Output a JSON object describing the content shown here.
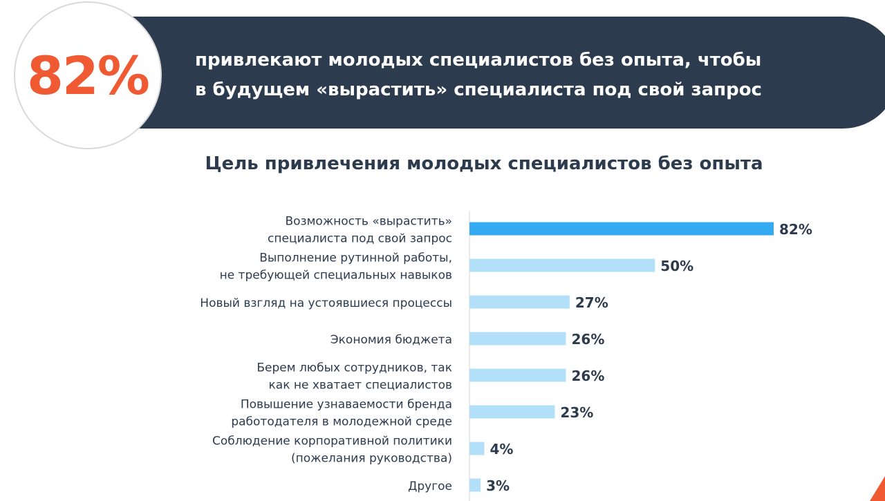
{
  "headline": {
    "percent": "82%",
    "line1": "привлекают молодых специалистов без опыта, чтобы",
    "line2": "в будущем «вырастить» специалиста под свой запрос"
  },
  "colors": {
    "banner": "#2d3b4e",
    "accent": "#f05a33",
    "bar_highlight": "#34aaf1",
    "bar_default": "#b3e0f9",
    "text": "#2d3b4e"
  },
  "chart_data": {
    "type": "bar",
    "orientation": "horizontal",
    "title": "Цель привлечения молодых специалистов без опыта",
    "categories": [
      [
        "Возможность «вырастить»",
        "специалиста под свой запрос"
      ],
      [
        "Выполнение рутинной работы,",
        "не требующей специальных навыков"
      ],
      [
        "Новый взгляд на устоявшиеся процессы"
      ],
      [
        "Экономия бюджета"
      ],
      [
        "Берем любых сотрудников, так",
        "как не хватает специалистов"
      ],
      [
        "Повышение узнаваемости бренда",
        "работодателя в молодежной среде"
      ],
      [
        "Соблюдение корпоративной политики",
        "(пожелания руководства)"
      ],
      [
        "Другое"
      ]
    ],
    "values": [
      82,
      50,
      27,
      26,
      26,
      23,
      4,
      3
    ],
    "value_labels": [
      "82%",
      "50%",
      "27%",
      "26%",
      "26%",
      "23%",
      "4%",
      "3%"
    ],
    "highlight_index": 0,
    "unit": "%",
    "grid": false,
    "legend": "none"
  }
}
